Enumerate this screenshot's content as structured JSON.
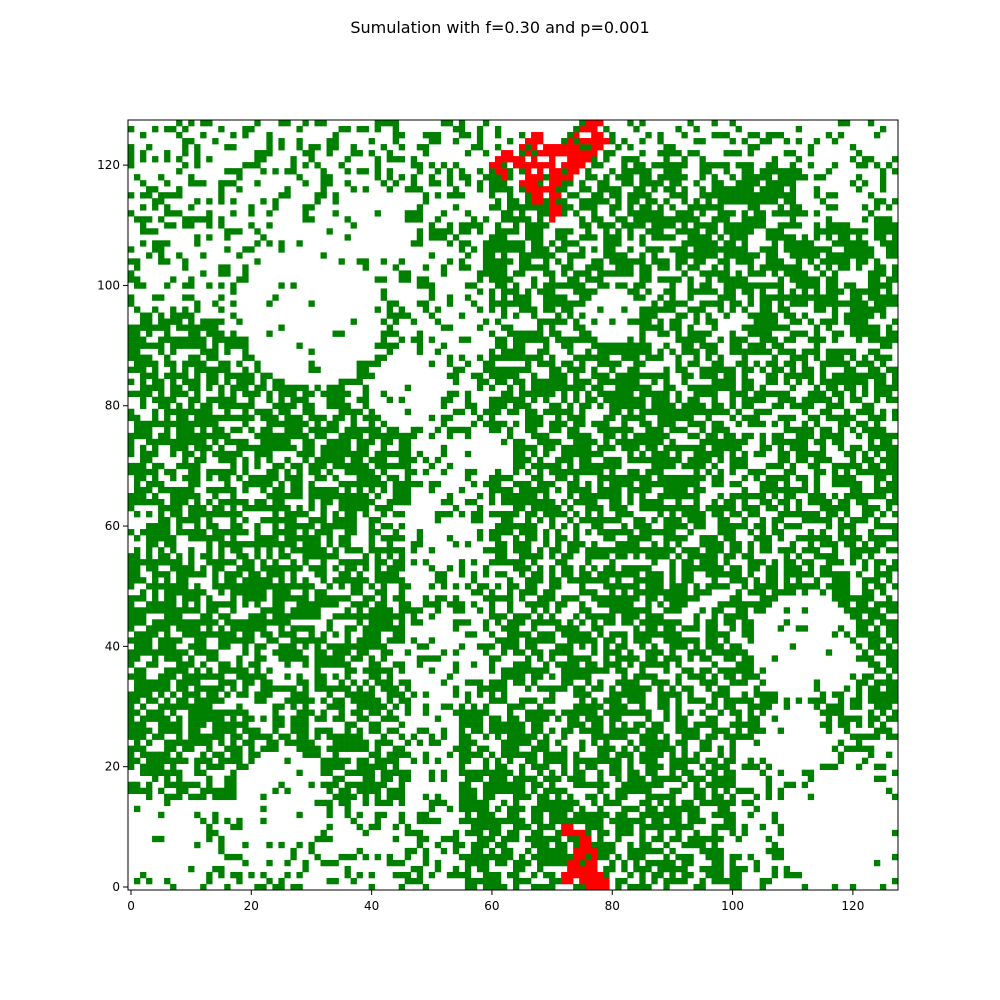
{
  "chart_data": {
    "type": "heatmap",
    "title": "Sumulation with f=0.30 and p=0.001",
    "xlabel": "",
    "ylabel": "",
    "grid_size": 128,
    "xlim": [
      -0.5,
      127.5
    ],
    "ylim": [
      -0.5,
      127.5
    ],
    "origin": "lower",
    "grid": false,
    "x_ticks": [
      0,
      20,
      40,
      60,
      80,
      100,
      120
    ],
    "y_ticks": [
      0,
      20,
      40,
      60,
      80,
      100,
      120
    ],
    "states": [
      {
        "name": "empty",
        "color": "#ffffff"
      },
      {
        "name": "tree",
        "color": "#008000"
      },
      {
        "name": "fire",
        "color": "#ff0000"
      }
    ],
    "tree_density_approx": 0.45,
    "dense_tree_regions": [
      {
        "x": [
          60,
          110
        ],
        "y": [
          25,
          120
        ]
      },
      {
        "x": [
          100,
          127
        ],
        "y": [
          25,
          110
        ]
      },
      {
        "x": [
          0,
          45
        ],
        "y": [
          15,
          95
        ]
      },
      {
        "x": [
          55,
          100
        ],
        "y": [
          0,
          30
        ]
      }
    ],
    "fire_cells": [
      [
        76,
        127
      ],
      [
        77,
        127
      ],
      [
        78,
        127
      ],
      [
        75,
        126
      ],
      [
        76,
        126
      ],
      [
        77,
        126
      ],
      [
        67,
        125
      ],
      [
        68,
        125
      ],
      [
        74,
        125
      ],
      [
        77,
        125
      ],
      [
        78,
        125
      ],
      [
        66,
        124
      ],
      [
        67,
        124
      ],
      [
        68,
        124
      ],
      [
        73,
        124
      ],
      [
        75,
        124
      ],
      [
        76,
        124
      ],
      [
        77,
        124
      ],
      [
        78,
        124
      ],
      [
        79,
        124
      ],
      [
        65,
        123
      ],
      [
        67,
        123
      ],
      [
        69,
        123
      ],
      [
        70,
        123
      ],
      [
        71,
        123
      ],
      [
        72,
        123
      ],
      [
        73,
        123
      ],
      [
        74,
        123
      ],
      [
        77,
        123
      ],
      [
        78,
        123
      ],
      [
        62,
        122
      ],
      [
        63,
        122
      ],
      [
        66,
        122
      ],
      [
        68,
        122
      ],
      [
        69,
        122
      ],
      [
        70,
        122
      ],
      [
        71,
        122
      ],
      [
        72,
        122
      ],
      [
        73,
        122
      ],
      [
        74,
        122
      ],
      [
        75,
        122
      ],
      [
        76,
        122
      ],
      [
        77,
        122
      ],
      [
        61,
        121
      ],
      [
        62,
        121
      ],
      [
        63,
        121
      ],
      [
        64,
        121
      ],
      [
        65,
        121
      ],
      [
        67,
        121
      ],
      [
        70,
        121
      ],
      [
        73,
        121
      ],
      [
        74,
        121
      ],
      [
        75,
        121
      ],
      [
        76,
        121
      ],
      [
        60,
        120
      ],
      [
        61,
        120
      ],
      [
        64,
        120
      ],
      [
        65,
        120
      ],
      [
        66,
        120
      ],
      [
        67,
        120
      ],
      [
        68,
        120
      ],
      [
        69,
        120
      ],
      [
        70,
        120
      ],
      [
        72,
        120
      ],
      [
        73,
        120
      ],
      [
        74,
        120
      ],
      [
        75,
        120
      ],
      [
        61,
        119
      ],
      [
        62,
        119
      ],
      [
        66,
        119
      ],
      [
        68,
        119
      ],
      [
        70,
        119
      ],
      [
        71,
        119
      ],
      [
        73,
        119
      ],
      [
        74,
        119
      ],
      [
        62,
        118
      ],
      [
        66,
        118
      ],
      [
        67,
        118
      ],
      [
        68,
        118
      ],
      [
        70,
        118
      ],
      [
        71,
        118
      ],
      [
        72,
        118
      ],
      [
        73,
        118
      ],
      [
        65,
        117
      ],
      [
        66,
        117
      ],
      [
        67,
        117
      ],
      [
        70,
        117
      ],
      [
        71,
        117
      ],
      [
        66,
        116
      ],
      [
        67,
        116
      ],
      [
        68,
        116
      ],
      [
        69,
        116
      ],
      [
        70,
        116
      ],
      [
        67,
        115
      ],
      [
        68,
        115
      ],
      [
        70,
        115
      ],
      [
        71,
        115
      ],
      [
        67,
        114
      ],
      [
        68,
        114
      ],
      [
        70,
        114
      ],
      [
        70,
        113
      ],
      [
        71,
        113
      ],
      [
        70,
        112
      ],
      [
        71,
        112
      ],
      [
        70,
        111
      ],
      [
        72,
        10
      ],
      [
        73,
        10
      ],
      [
        72,
        9
      ],
      [
        73,
        9
      ],
      [
        74,
        9
      ],
      [
        75,
        9
      ],
      [
        75,
        8
      ],
      [
        76,
        8
      ],
      [
        75,
        7
      ],
      [
        76,
        7
      ],
      [
        74,
        6
      ],
      [
        75,
        6
      ],
      [
        76,
        6
      ],
      [
        77,
        6
      ],
      [
        74,
        5
      ],
      [
        75,
        5
      ],
      [
        77,
        5
      ],
      [
        73,
        4
      ],
      [
        74,
        4
      ],
      [
        76,
        4
      ],
      [
        77,
        4
      ],
      [
        73,
        3
      ],
      [
        74,
        3
      ],
      [
        75,
        3
      ],
      [
        76,
        3
      ],
      [
        77,
        3
      ],
      [
        72,
        2
      ],
      [
        73,
        2
      ],
      [
        74,
        2
      ],
      [
        75,
        2
      ],
      [
        76,
        2
      ],
      [
        77,
        2
      ],
      [
        78,
        2
      ],
      [
        72,
        1
      ],
      [
        73,
        1
      ],
      [
        75,
        1
      ],
      [
        76,
        1
      ],
      [
        77,
        1
      ],
      [
        78,
        1
      ],
      [
        79,
        1
      ],
      [
        76,
        0
      ],
      [
        77,
        0
      ],
      [
        78,
        0
      ],
      [
        79,
        0
      ]
    ]
  }
}
